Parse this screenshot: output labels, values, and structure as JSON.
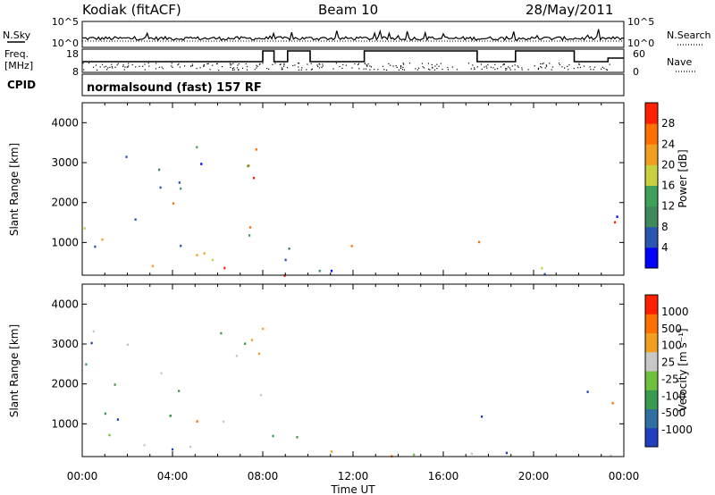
{
  "header": {
    "station": "Kodiak (fitACF)",
    "beam": "Beam 10",
    "date": "28/May/2011"
  },
  "top_panels": {
    "nsky_label": "N.Sky",
    "nsky_ticks": [
      "10^5",
      "10^0"
    ],
    "nsearch_label": "N.Search",
    "nsearch_ticks": [
      "10^5",
      "10^0"
    ],
    "freq_label": "Freq.",
    "freq_unit": "[MHz]",
    "freq_ticks": [
      "18",
      "8"
    ],
    "nave_label": "Nave",
    "nave_ticks": [
      "60",
      "0"
    ],
    "cpid_label": "CPID",
    "cpid_text": "normalsound (fast) 157 RF"
  },
  "chart_data": [
    {
      "type": "heatmap",
      "name": "power",
      "xlabel": "Time UT",
      "ylabel": "Slant Range [km]",
      "x_ticks": [
        "00:00",
        "04:00",
        "08:00",
        "12:00",
        "16:00",
        "20:00",
        "00:00"
      ],
      "xlim": [
        0,
        24
      ],
      "ylim": [
        180,
        4500
      ],
      "y_ticks": [
        "1000",
        "2000",
        "3000",
        "4000"
      ],
      "colorbar": {
        "label": "Power [dB]",
        "ticks": [
          "4",
          "8",
          "12",
          "16",
          "20",
          "24",
          "28"
        ],
        "range": [
          0,
          30
        ],
        "colors": [
          "#0000ff",
          "#2a55b0",
          "#3f8a5a",
          "#3fa05a",
          "#c8d040",
          "#f0a020",
          "#ff7000",
          "#ff2000"
        ]
      }
    },
    {
      "type": "heatmap",
      "name": "velocity",
      "xlabel": "Time UT",
      "ylabel": "Slant Range [km]",
      "x_ticks": [
        "00:00",
        "04:00",
        "08:00",
        "12:00",
        "16:00",
        "20:00",
        "00:00"
      ],
      "xlim": [
        0,
        24
      ],
      "ylim": [
        180,
        4500
      ],
      "y_ticks": [
        "1000",
        "2000",
        "3000",
        "4000"
      ],
      "colorbar": {
        "label": "Velocity [m s⁻¹]",
        "ticks": [
          "1000",
          "500",
          "100",
          "25",
          "-25",
          "-100",
          "-500",
          "-1000"
        ],
        "colors": [
          "#2040c0",
          "#3070a0",
          "#3a9a50",
          "#70c040",
          "#c8c8c8",
          "#f0a020",
          "#ff7000",
          "#ff2000"
        ]
      }
    }
  ],
  "freq_steps": [
    {
      "t0": 0,
      "t1": 6.7,
      "level": "low"
    },
    {
      "t0": 6.7,
      "t1": 8.0,
      "level": "low"
    },
    {
      "t0": 8.0,
      "t1": 8.5,
      "level": "high"
    },
    {
      "t0": 8.5,
      "t1": 9.1,
      "level": "low"
    },
    {
      "t0": 9.1,
      "t1": 9.4,
      "level": "high"
    },
    {
      "t0": 9.4,
      "t1": 10.1,
      "level": "high"
    },
    {
      "t0": 10.1,
      "t1": 12.5,
      "level": "low"
    },
    {
      "t0": 12.5,
      "t1": 17.5,
      "level": "high"
    },
    {
      "t0": 17.5,
      "t1": 19.2,
      "level": "low"
    },
    {
      "t0": 19.2,
      "t1": 21.8,
      "level": "high"
    },
    {
      "t0": 21.8,
      "t1": 23.3,
      "level": "low"
    },
    {
      "t0": 23.3,
      "t1": 24.0,
      "level": "mid"
    }
  ]
}
